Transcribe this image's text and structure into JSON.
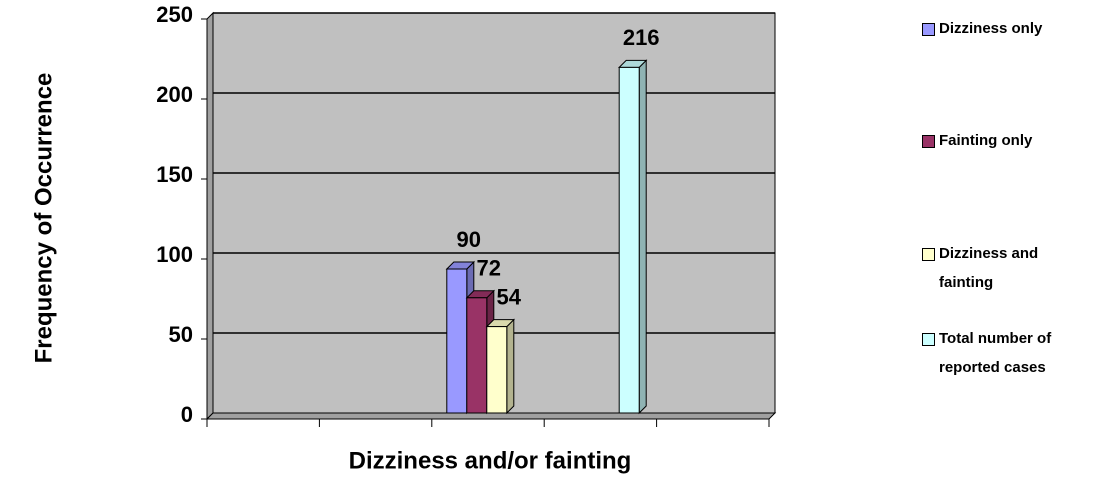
{
  "chart_data": {
    "type": "bar",
    "x_label": "Dizziness and/or fainting",
    "y_label": "Frequency of Occurrence",
    "categories": [
      null,
      null,
      null,
      null,
      null
    ],
    "series": [
      {
        "name": "Dizziness only",
        "color": "#9999ff",
        "values": [
          null,
          null,
          90,
          null,
          null
        ]
      },
      {
        "name": "Fainting only",
        "color": "#993366",
        "values": [
          null,
          null,
          72,
          null,
          null
        ]
      },
      {
        "name": "Dizziness and fainting",
        "color": "#ffffcc",
        "values": [
          null,
          null,
          54,
          null,
          null
        ]
      },
      {
        "name": "Total number of reported cases",
        "color": "#ccffff",
        "values": [
          null,
          null,
          null,
          216,
          null
        ]
      }
    ],
    "ylim": [
      0,
      250
    ],
    "yticks": [
      0,
      50,
      100,
      150,
      200,
      250
    ],
    "grid": true,
    "plot_background": "#c0c0c0",
    "legend": "right"
  }
}
